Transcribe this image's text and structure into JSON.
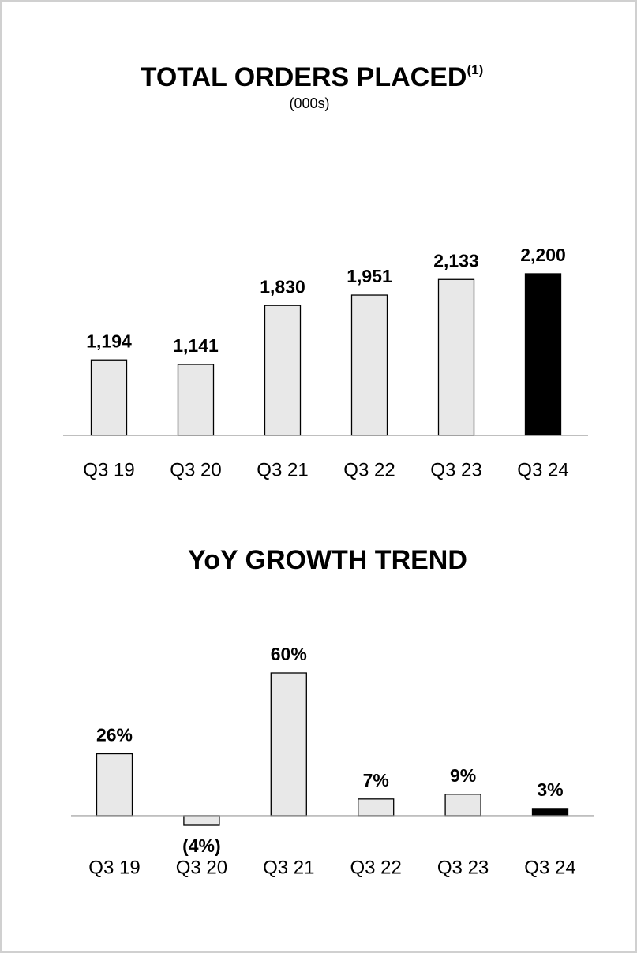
{
  "chart_data": [
    {
      "type": "bar",
      "title": "TOTAL ORDERS PLACED",
      "title_note": "(1)",
      "subtitle": "(000s)",
      "categories": [
        "Q3 19",
        "Q3 20",
        "Q3 21",
        "Q3 22",
        "Q3 23",
        "Q3 24"
      ],
      "values": [
        1194,
        1141,
        1830,
        1951,
        2133,
        2200
      ],
      "value_labels": [
        "1,194",
        "1,141",
        "1,830",
        "1,951",
        "2,133",
        "2,200"
      ],
      "colors": [
        "#e8e8e8",
        "#e8e8e8",
        "#e8e8e8",
        "#e8e8e8",
        "#e8e8e8",
        "#000000"
      ],
      "ylim": [
        312,
        2200
      ]
    },
    {
      "type": "bar",
      "title": "YoY GROWTH TREND",
      "categories": [
        "Q3 19",
        "Q3 20",
        "Q3 21",
        "Q3 22",
        "Q3 23",
        "Q3 24"
      ],
      "values": [
        26,
        -4,
        60,
        7,
        9,
        3
      ],
      "value_labels": [
        "26%",
        "(4%)",
        "60%",
        "7%",
        "9%",
        "3%"
      ],
      "colors": [
        "#e8e8e8",
        "#e8e8e8",
        "#e8e8e8",
        "#e8e8e8",
        "#e8e8e8",
        "#000000"
      ],
      "ylim": [
        -4,
        60
      ]
    }
  ]
}
